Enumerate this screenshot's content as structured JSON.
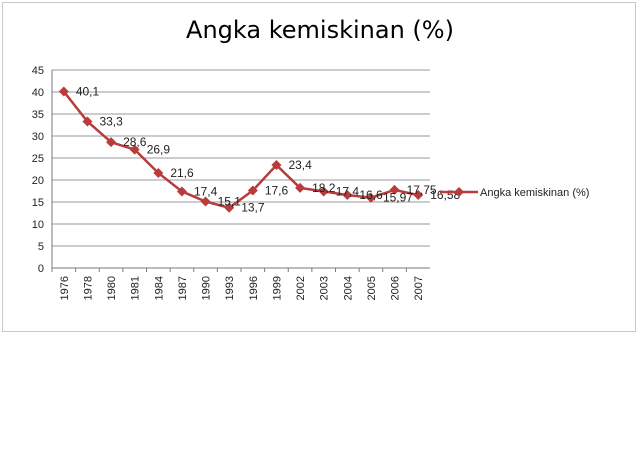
{
  "chart_data": {
    "type": "line",
    "title": "Angka kemiskinan (%)",
    "xlabel": "",
    "ylabel": "",
    "categories": [
      "1976",
      "1978",
      "1980",
      "1981",
      "1984",
      "1987",
      "1990",
      "1993",
      "1996",
      "1999",
      "2002",
      "2003",
      "2004",
      "2005",
      "2006",
      "2007"
    ],
    "series": [
      {
        "name": "Angka kemiskinan (%)",
        "values": [
          40.1,
          33.3,
          28.6,
          26.9,
          21.6,
          17.4,
          15.1,
          13.7,
          17.6,
          23.4,
          18.2,
          17.4,
          16.6,
          15.97,
          17.75,
          16.58
        ],
        "labels": [
          "40,1",
          "33,3",
          "28,6",
          "26,9",
          "21,6",
          "17,4",
          "15,1",
          "13,7",
          "17,6",
          "23,4",
          "18,2",
          "17,4",
          "16,6",
          "15,97",
          "17,75",
          "16,58"
        ],
        "color": "#b83c3c"
      }
    ],
    "yticks": [
      "0",
      "5",
      "10",
      "15",
      "20",
      "25",
      "30",
      "35",
      "40",
      "45"
    ],
    "ylim": [
      0,
      45
    ],
    "grid": true,
    "legend_position": "right"
  }
}
